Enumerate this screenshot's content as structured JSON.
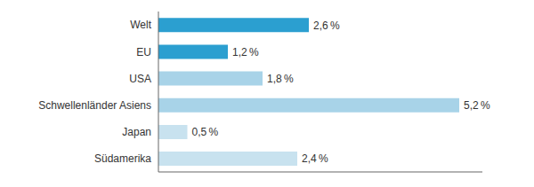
{
  "chart_data": {
    "type": "bar",
    "orientation": "horizontal",
    "categories": [
      "Welt",
      "EU",
      "USA",
      "Schwellenländer Asiens",
      "Japan",
      "Südamerika"
    ],
    "values": [
      2.6,
      1.2,
      1.8,
      5.2,
      0.5,
      2.4
    ],
    "value_labels": [
      "2,6 %",
      "1,2 %",
      "1,8 %",
      "5,2 %",
      "0,5 %",
      "2,4 %"
    ],
    "data_labels": true,
    "colors": [
      "#2b9fd0",
      "#2b9fd0",
      "#a8d3e8",
      "#a8d3e8",
      "#c8e2ef",
      "#c8e2ef"
    ],
    "xlim": [
      0,
      5.6
    ],
    "tick_labels": "y"
  }
}
